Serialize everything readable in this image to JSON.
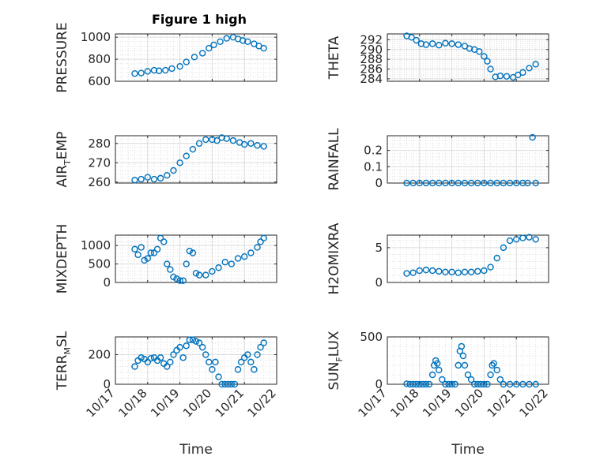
{
  "figure": {
    "title": "Figure 1 high",
    "marker_color": "#0072BD",
    "grid": "dotted minor + major"
  },
  "chart_data": [
    {
      "id": "p1",
      "type": "scatter",
      "title": "Figure 1 high",
      "ylabel_parts": [
        "PRESSURE"
      ],
      "xlabel": "",
      "xlim": [
        0,
        5
      ],
      "ylim": [
        600,
        1030
      ],
      "yticks": [
        600,
        800,
        1000
      ],
      "xticklabels": [],
      "series": [
        {
          "x": [
            0.6,
            0.8,
            1.0,
            1.2,
            1.35,
            1.55,
            1.75,
            2.0,
            2.2,
            2.45,
            2.7,
            2.9,
            3.05,
            3.25,
            3.45,
            3.65,
            3.8,
            3.95,
            4.1,
            4.3,
            4.45,
            4.6
          ],
          "y": [
            670,
            675,
            690,
            700,
            695,
            700,
            715,
            735,
            775,
            820,
            855,
            900,
            930,
            960,
            990,
            1000,
            985,
            970,
            960,
            940,
            920,
            900
          ]
        }
      ]
    },
    {
      "id": "p2",
      "type": "scatter",
      "ylabel_parts": [
        "THETA"
      ],
      "xlabel": "",
      "xlim": [
        0,
        5
      ],
      "ylim": [
        283.5,
        293.2
      ],
      "yticks": [
        284,
        286,
        288,
        290,
        292
      ],
      "xticklabels": [],
      "series": [
        {
          "x": [
            0.6,
            0.75,
            0.9,
            1.05,
            1.2,
            1.4,
            1.6,
            1.8,
            2.0,
            2.2,
            2.4,
            2.55,
            2.7,
            2.85,
            3.0,
            3.1,
            3.2,
            3.35,
            3.5,
            3.7,
            3.9,
            4.05,
            4.2,
            4.4,
            4.6
          ],
          "y": [
            292.8,
            292.5,
            291.9,
            291.2,
            291.0,
            291.2,
            290.9,
            291.3,
            291.2,
            291.0,
            290.7,
            290.2,
            290.0,
            289.6,
            288.6,
            287.6,
            286.0,
            284.4,
            284.6,
            284.5,
            284.3,
            284.8,
            285.3,
            286.2,
            287.0
          ]
        }
      ]
    },
    {
      "id": "p3",
      "type": "scatter",
      "ylabel_parts": [
        "AIR",
        "T",
        "EMP"
      ],
      "xlabel": "",
      "xlim": [
        0,
        5
      ],
      "ylim": [
        259.5,
        284
      ],
      "yticks": [
        260,
        270,
        280
      ],
      "xticklabels": [],
      "series": [
        {
          "x": [
            0.6,
            0.8,
            1.0,
            1.2,
            1.4,
            1.6,
            1.8,
            2.0,
            2.2,
            2.4,
            2.6,
            2.8,
            3.0,
            3.15,
            3.3,
            3.45,
            3.65,
            3.85,
            4.0,
            4.2,
            4.4,
            4.6
          ],
          "y": [
            261,
            261.5,
            262.5,
            261.5,
            262,
            263.5,
            266,
            270,
            273.5,
            277,
            280,
            282,
            282,
            281.5,
            283,
            282.5,
            281.5,
            280.5,
            279.5,
            280,
            279,
            278.5
          ]
        }
      ]
    },
    {
      "id": "p4",
      "type": "scatter",
      "ylabel_parts": [
        "RAINFALL"
      ],
      "xlabel": "",
      "xlim": [
        0,
        5
      ],
      "ylim": [
        0,
        0.29
      ],
      "yticks": [
        0,
        0.1,
        0.2
      ],
      "xticklabels": [],
      "series": [
        {
          "x": [
            0.6,
            0.8,
            1.0,
            1.2,
            1.4,
            1.6,
            1.8,
            2.0,
            2.2,
            2.4,
            2.6,
            2.8,
            3.0,
            3.2,
            3.4,
            3.6,
            3.8,
            4.0,
            4.2,
            4.35,
            4.5,
            4.6
          ],
          "y": [
            0,
            0,
            0,
            0,
            0,
            0,
            0,
            0,
            0,
            0,
            0,
            0,
            0,
            0,
            0,
            0,
            0,
            0,
            0,
            0,
            0.28,
            0
          ]
        }
      ]
    },
    {
      "id": "p5",
      "type": "scatter",
      "ylabel_parts": [
        "MIXDEPTH"
      ],
      "xlabel": "",
      "xlim": [
        0,
        5
      ],
      "ylim": [
        0,
        1280
      ],
      "yticks": [
        0,
        500,
        1000
      ],
      "xticklabels": [],
      "series": [
        {
          "x": [
            0.6,
            0.7,
            0.8,
            0.9,
            1.0,
            1.1,
            1.2,
            1.3,
            1.4,
            1.5,
            1.6,
            1.7,
            1.8,
            1.9,
            2.0,
            2.1,
            2.2,
            2.3,
            2.4,
            2.5,
            2.6,
            2.8,
            3.0,
            3.2,
            3.4,
            3.6,
            3.8,
            4.0,
            4.2,
            4.4,
            4.5,
            4.6
          ],
          "y": [
            900,
            750,
            950,
            600,
            650,
            800,
            800,
            900,
            1200,
            1100,
            500,
            350,
            150,
            100,
            50,
            50,
            500,
            850,
            800,
            250,
            200,
            200,
            300,
            400,
            550,
            500,
            650,
            700,
            800,
            950,
            1100,
            1200
          ]
        }
      ]
    },
    {
      "id": "p6",
      "type": "scatter",
      "ylabel_parts": [
        "H2OMIXRA"
      ],
      "xlabel": "",
      "xlim": [
        0,
        5
      ],
      "ylim": [
        0,
        6.8
      ],
      "yticks": [
        0,
        5
      ],
      "xticklabels": [],
      "series": [
        {
          "x": [
            0.6,
            0.8,
            1.0,
            1.2,
            1.4,
            1.6,
            1.8,
            2.0,
            2.2,
            2.4,
            2.6,
            2.8,
            3.0,
            3.2,
            3.4,
            3.6,
            3.8,
            4.0,
            4.2,
            4.4,
            4.6
          ],
          "y": [
            1.3,
            1.4,
            1.7,
            1.8,
            1.7,
            1.6,
            1.5,
            1.5,
            1.4,
            1.5,
            1.5,
            1.6,
            1.7,
            2.2,
            3.5,
            5.0,
            6.0,
            6.2,
            6.4,
            6.5,
            6.2
          ]
        }
      ]
    },
    {
      "id": "p7",
      "type": "scatter",
      "ylabel_parts": [
        "TERR",
        "M",
        "SL"
      ],
      "xlabel": "Time",
      "xlim": [
        0,
        5
      ],
      "ylim": [
        0,
        320
      ],
      "yticks": [
        0,
        200
      ],
      "xticklabels": [
        "10/17",
        "10/18",
        "10/19",
        "10/20",
        "10/21",
        "10/22"
      ],
      "series": [
        {
          "x": [
            0.6,
            0.7,
            0.8,
            0.9,
            1.0,
            1.1,
            1.2,
            1.3,
            1.4,
            1.5,
            1.6,
            1.7,
            1.8,
            1.9,
            2.0,
            2.1,
            2.2,
            2.3,
            2.4,
            2.5,
            2.6,
            2.7,
            2.8,
            2.9,
            3.0,
            3.1,
            3.2,
            3.3,
            3.4,
            3.5,
            3.6,
            3.7,
            3.8,
            3.9,
            4.0,
            4.1,
            4.2,
            4.3,
            4.4,
            4.5,
            4.6
          ],
          "y": [
            120,
            160,
            180,
            170,
            150,
            175,
            180,
            160,
            180,
            140,
            120,
            150,
            200,
            230,
            250,
            180,
            260,
            300,
            300,
            290,
            280,
            250,
            200,
            150,
            100,
            150,
            50,
            0,
            0,
            0,
            0,
            0,
            100,
            150,
            180,
            200,
            150,
            100,
            200,
            250,
            280
          ]
        }
      ]
    },
    {
      "id": "p8",
      "type": "scatter",
      "ylabel_parts": [
        "SUN",
        "F",
        "LUX"
      ],
      "xlabel": "Time",
      "xlim": [
        0,
        5
      ],
      "ylim": [
        0,
        500
      ],
      "yticks": [
        0,
        500
      ],
      "xticklabels": [
        "10/17",
        "10/18",
        "10/19",
        "10/20",
        "10/21",
        "10/22"
      ],
      "series": [
        {
          "x": [
            0.6,
            0.7,
            0.8,
            0.9,
            1.0,
            1.1,
            1.2,
            1.3,
            1.4,
            1.45,
            1.5,
            1.55,
            1.6,
            1.7,
            1.8,
            1.9,
            2.0,
            2.1,
            2.2,
            2.25,
            2.3,
            2.35,
            2.4,
            2.5,
            2.6,
            2.7,
            2.8,
            2.9,
            3.0,
            3.1,
            3.2,
            3.25,
            3.3,
            3.4,
            3.5,
            3.6,
            3.8,
            4.0,
            4.2,
            4.4,
            4.6
          ],
          "y": [
            5,
            0,
            0,
            0,
            0,
            0,
            0,
            0,
            100,
            200,
            250,
            220,
            150,
            50,
            0,
            0,
            0,
            0,
            200,
            350,
            400,
            300,
            200,
            100,
            50,
            0,
            0,
            0,
            0,
            0,
            100,
            200,
            220,
            150,
            50,
            0,
            0,
            0,
            0,
            0,
            0
          ]
        }
      ]
    }
  ]
}
